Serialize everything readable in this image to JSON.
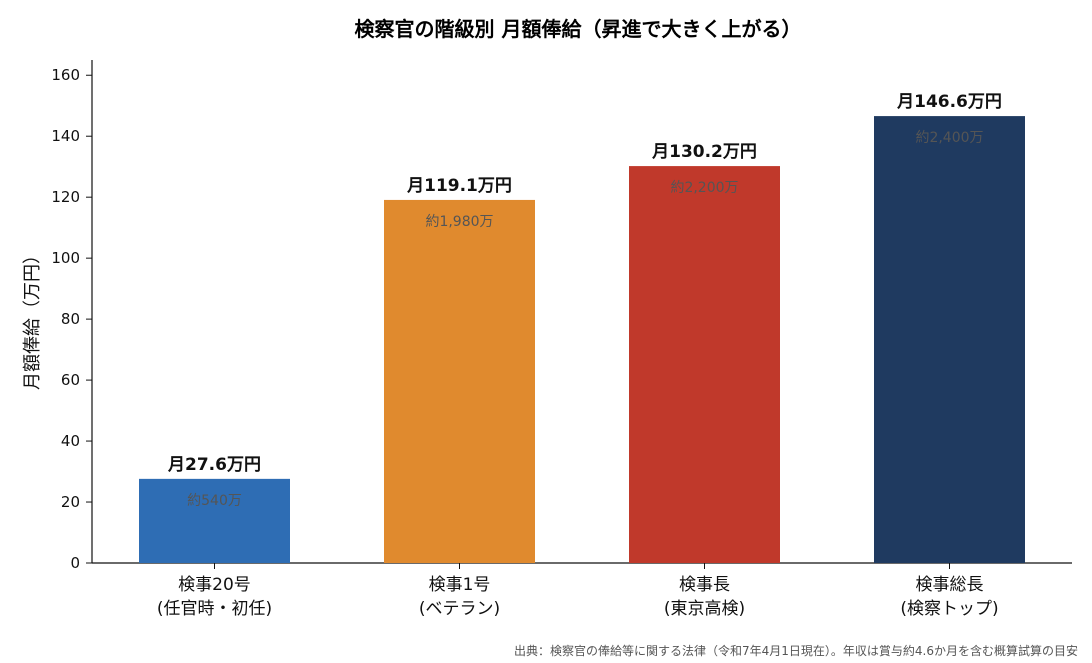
{
  "chart_data": {
    "type": "bar",
    "title": "検察官の階級別 月額俸給（昇進で大きく上がる）",
    "xlabel": "",
    "ylabel": "月額俸給（万円）",
    "ylim": [
      0,
      165
    ],
    "yticks": [
      0,
      20,
      40,
      60,
      80,
      100,
      120,
      140,
      160
    ],
    "categories": [
      [
        "検事20号",
        "(任官時・初任)"
      ],
      [
        "検事1号",
        "(ベテラン)"
      ],
      [
        "検事長",
        "(東京高検)"
      ],
      [
        "検事総長",
        "(検察トップ)"
      ]
    ],
    "values": [
      27.6,
      119.1,
      130.2,
      146.6
    ],
    "value_labels": [
      "月27.6万円",
      "月119.1万円",
      "月130.2万円",
      "月146.6万円"
    ],
    "annotations": [
      "約540万",
      "約1,980万",
      "約2,200万",
      "約2,400万"
    ],
    "colors": [
      "#2e6db4",
      "#e08a2e",
      "#c0392b",
      "#1f3a60"
    ],
    "grid": false,
    "legend": "none"
  },
  "footnote": "出典：検察官の俸給等に関する法律（令和7年4月1日現在）。年収は賞与約4.6か月を含む概算試算の目安"
}
